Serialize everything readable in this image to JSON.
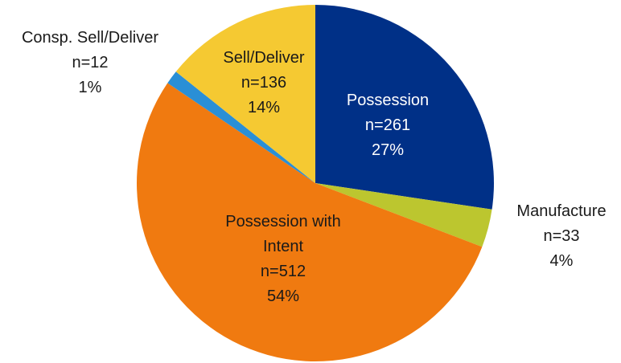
{
  "chart_data": {
    "type": "pie",
    "categories": [
      "Possession",
      "Manufacture",
      "Possession with Intent",
      "Consp. Sell/Deliver",
      "Sell/Deliver"
    ],
    "values": [
      261,
      33,
      512,
      12,
      136
    ],
    "value_labels": [
      "n=261",
      "n=33",
      "n=512",
      "n=12",
      "n=136"
    ],
    "percent_labels": [
      "27%",
      "4%",
      "54%",
      "1%",
      "14%"
    ],
    "colors": [
      "#003087",
      "#bcc62f",
      "#f07a10",
      "#2a8fd6",
      "#f5c932"
    ]
  }
}
